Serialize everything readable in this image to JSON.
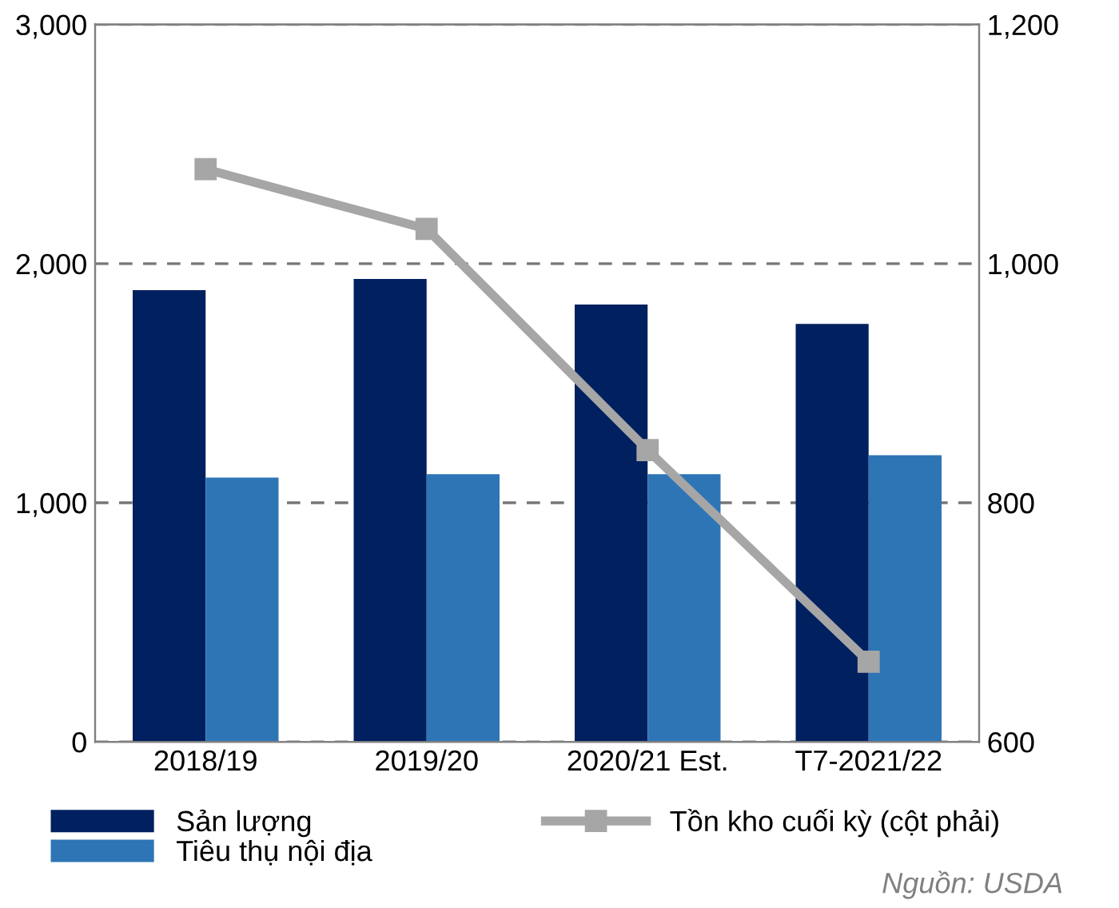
{
  "chart_data": {
    "type": "bar",
    "categories": [
      "2018/19",
      "2019/20",
      "2020/21 Est.",
      "T7-2021/22"
    ],
    "series": [
      {
        "name": "Sản lượng",
        "color": "#002060",
        "values": [
          1889,
          1936,
          1829,
          1748
        ]
      },
      {
        "name": "Tiêu thụ nội địa",
        "color": "#2e75b6",
        "values": [
          1105,
          1119,
          1119,
          1199
        ]
      },
      {
        "name": "Tồn kho cuối kỳ (cột phải)",
        "type": "line",
        "axis": "y2",
        "color": "#a6a6a6",
        "values": [
          1079,
          1029,
          844,
          667
        ],
        "marker": "square"
      }
    ],
    "ylim": [
      0,
      3000
    ],
    "yticks": [
      0,
      {
        "value": 1000,
        "label": "1,000"
      },
      {
        "value": 2000,
        "label": "2,000"
      },
      {
        "value": 3000,
        "label": "3,000"
      }
    ],
    "y2lim": [
      600,
      1200
    ],
    "y2ticks": [
      600,
      800,
      {
        "value": 1000,
        "label": "1,000"
      },
      {
        "value": 1200,
        "label": "1,200"
      }
    ],
    "grid": "y",
    "legend": "bottom",
    "annotations": [
      "Nguồn: USDA"
    ]
  }
}
